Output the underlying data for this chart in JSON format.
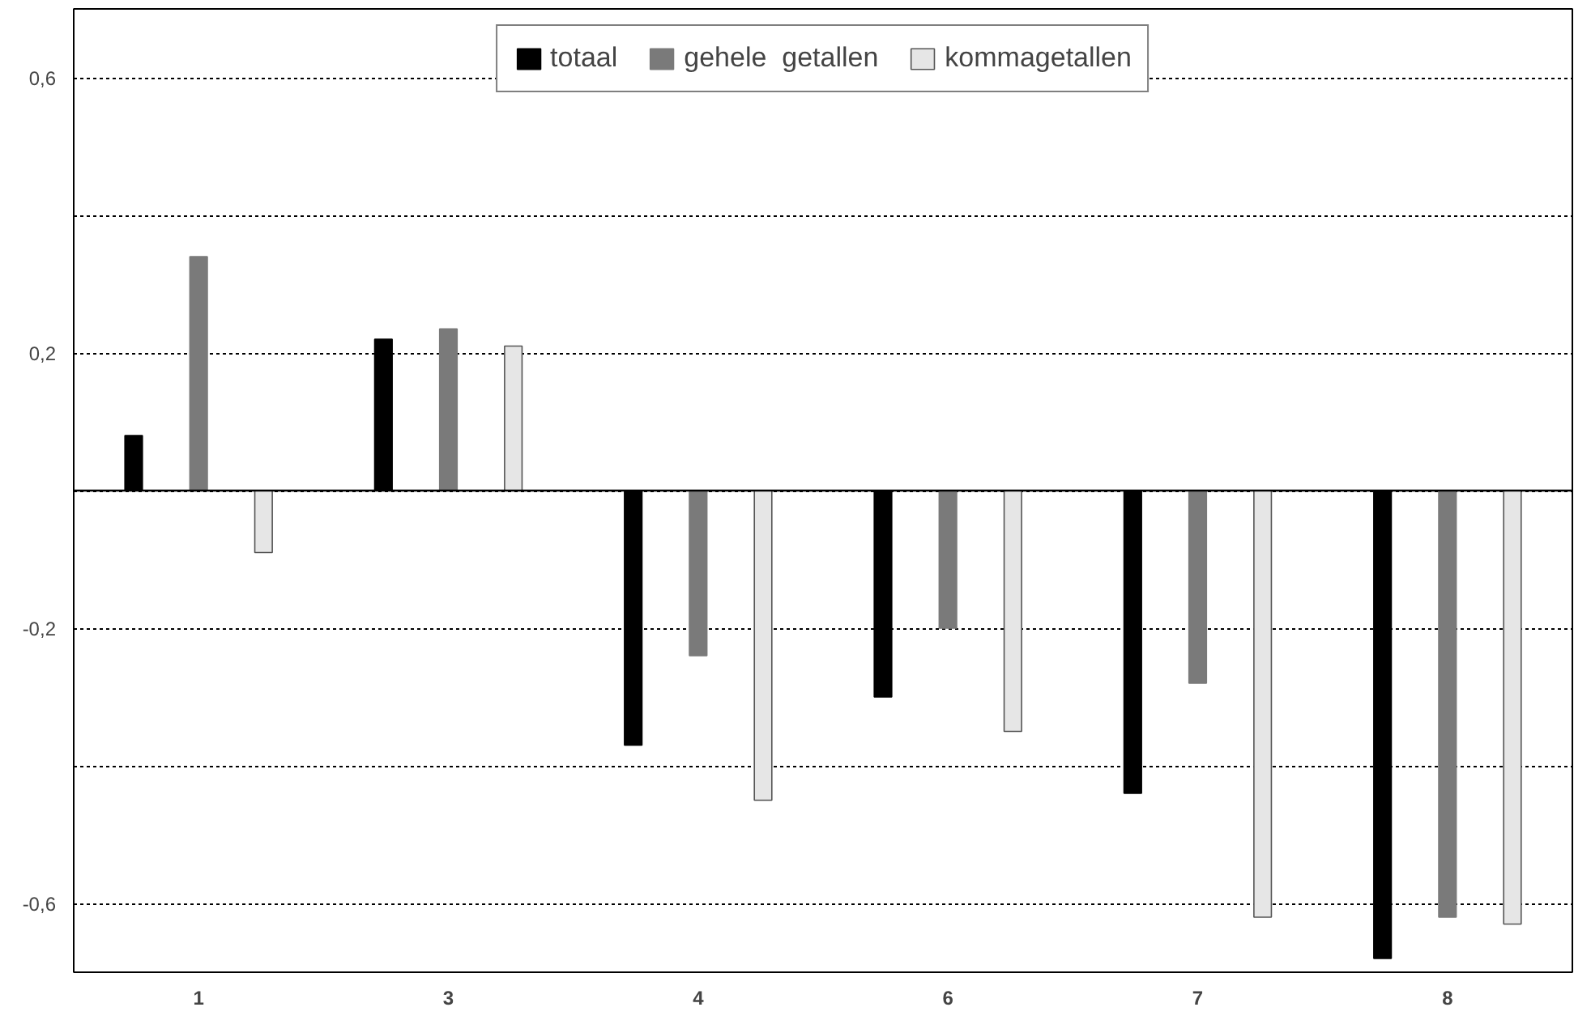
{
  "chart_data": {
    "type": "bar",
    "categories": [
      "1",
      "3",
      "4",
      "6",
      "7",
      "8"
    ],
    "series": [
      {
        "name": "totaal",
        "color": "#000000",
        "values": [
          0.08,
          0.22,
          -0.37,
          -0.3,
          -0.44,
          -0.68
        ]
      },
      {
        "name": "gehele  getallen",
        "color": "#7a7a7a",
        "values": [
          0.34,
          0.235,
          -0.24,
          -0.2,
          -0.28,
          -0.62
        ]
      },
      {
        "name": "kommagetallen",
        "color": "#e6e6e6",
        "values": [
          -0.09,
          0.21,
          -0.45,
          -0.35,
          -0.62,
          -0.63
        ]
      }
    ],
    "ylim": [
      -0.7,
      0.7
    ],
    "yticks": [
      {
        "value": 0.6,
        "label": "0,6"
      },
      {
        "value": 0.4,
        "label": null
      },
      {
        "value": 0.2,
        "label": "0,2"
      },
      {
        "value": 0,
        "label": null
      },
      {
        "value": -0.2,
        "label": "-0,2"
      },
      {
        "value": -0.4,
        "label": null
      },
      {
        "value": -0.6,
        "label": "-0,6"
      }
    ],
    "grid": "y",
    "legend": "top"
  }
}
